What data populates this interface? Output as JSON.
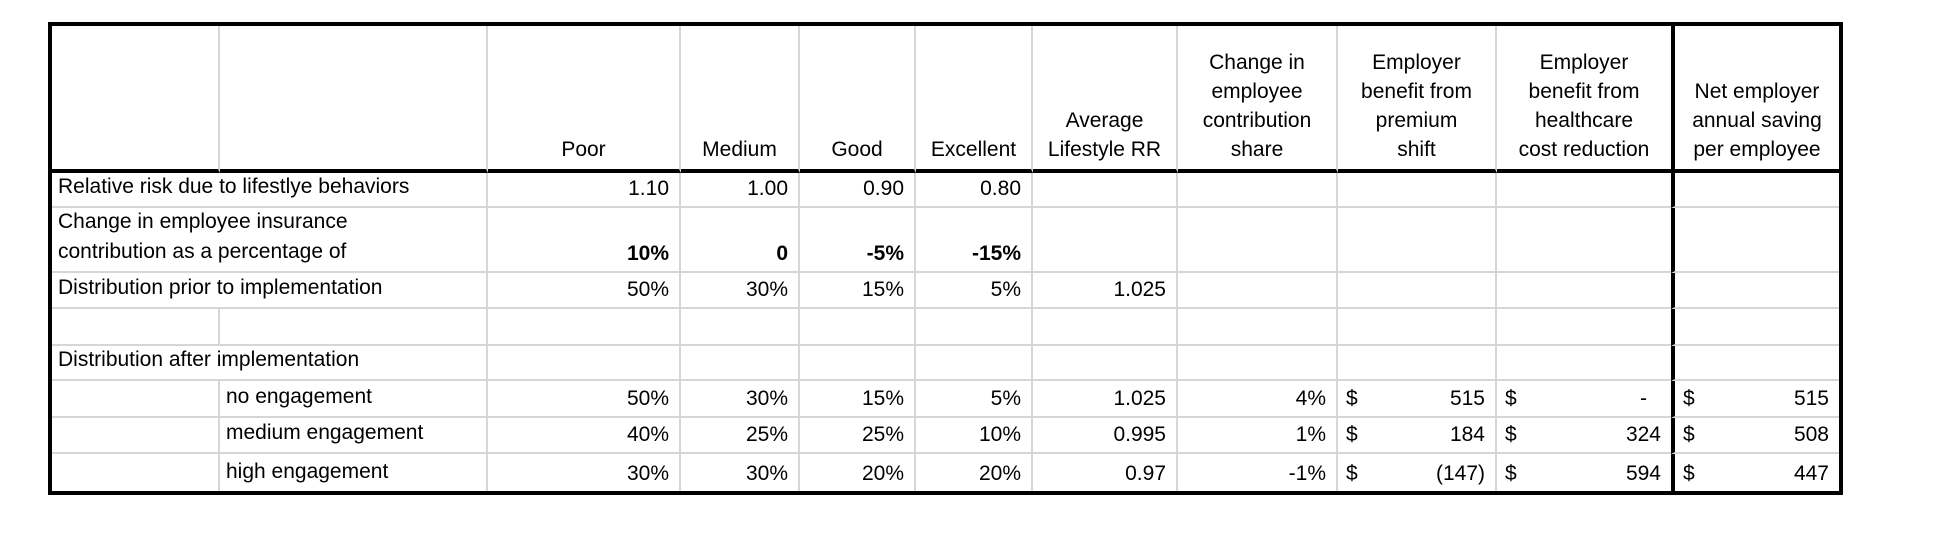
{
  "table": {
    "grid_color": "#d6d6d6",
    "border_color": "#000000",
    "headers": {
      "poor": "Poor",
      "medium": "Medium",
      "good": "Good",
      "excellent": "Excellent",
      "avg_lifestyle_rr": "Average\nLifestyle RR",
      "contribution_share": "Change in\nemployee\ncontribution\nshare",
      "premium_shift": "Employer\nbenefit from\npremium\nshift",
      "healthcare_reduction": "Employer\nbenefit from\nhealthcare\ncost reduction",
      "net_saving": "Net employer\nannual saving\nper employee"
    },
    "rows": {
      "relative_risk": {
        "label": "Relative risk due to lifestlye behaviors",
        "poor": "1.10",
        "medium": "1.00",
        "good": "0.90",
        "excellent": "0.80"
      },
      "contribution_change": {
        "label": "Change in employee insurance\ncontribution as a percentage of",
        "poor": "10%",
        "medium": "0",
        "good": "-5%",
        "excellent": "-15%"
      },
      "dist_prior": {
        "label": "Distribution prior to implementation",
        "poor": "50%",
        "medium": "30%",
        "good": "15%",
        "excellent": "5%",
        "avg_rr": "1.025"
      },
      "dist_after": {
        "label": "Distribution after implementation"
      },
      "no_engagement": {
        "label": "no engagement",
        "poor": "50%",
        "medium": "30%",
        "good": "15%",
        "excellent": "5%",
        "avg_rr": "1.025",
        "share": "4%",
        "premium": {
          "cur": "$",
          "val": "515"
        },
        "healthcare": {
          "cur": "$",
          "val": "-"
        },
        "net": {
          "cur": "$",
          "val": "515"
        }
      },
      "medium_engagement": {
        "label": "medium engagement",
        "poor": "40%",
        "medium": "25%",
        "good": "25%",
        "excellent": "10%",
        "avg_rr": "0.995",
        "share": "1%",
        "premium": {
          "cur": "$",
          "val": "184"
        },
        "healthcare": {
          "cur": "$",
          "val": "324"
        },
        "net": {
          "cur": "$",
          "val": "508"
        }
      },
      "high_engagement": {
        "label": "high engagement",
        "poor": "30%",
        "medium": "30%",
        "good": "20%",
        "excellent": "20%",
        "avg_rr": "0.97",
        "share": "-1%",
        "premium": {
          "cur": "$",
          "val": "(147)"
        },
        "healthcare": {
          "cur": "$",
          "val": "594"
        },
        "net": {
          "cur": "$",
          "val": "447"
        }
      }
    }
  }
}
